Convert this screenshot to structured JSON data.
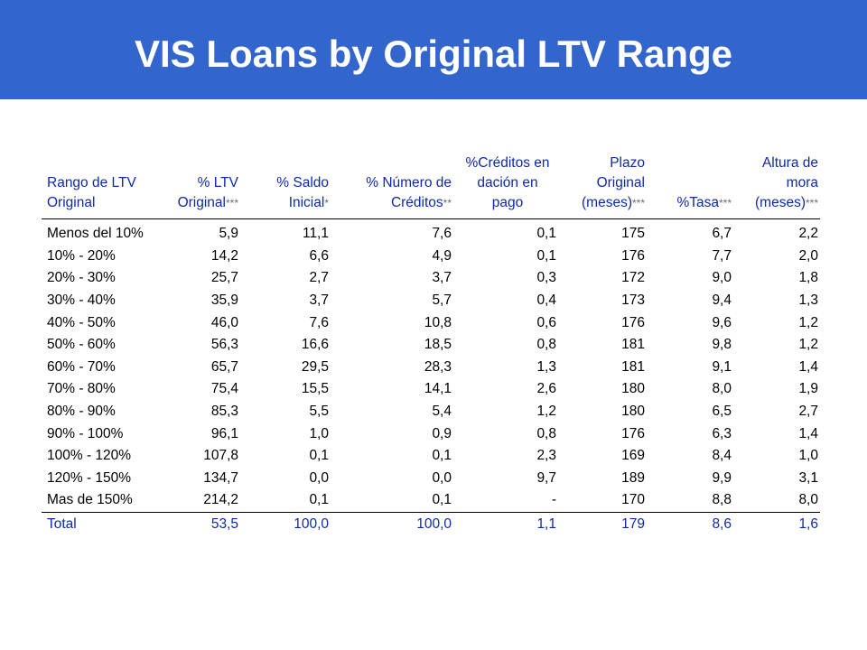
{
  "slide": {
    "title": "VIS Loans by Original LTV Range"
  },
  "table": {
    "headers": [
      {
        "lines": [
          "Rango de LTV",
          "Original"
        ],
        "asterisks": ""
      },
      {
        "lines": [
          "% LTV",
          "Original"
        ],
        "asterisks": "***"
      },
      {
        "lines": [
          "% Saldo",
          "Inicial"
        ],
        "asterisks": "*"
      },
      {
        "lines": [
          "% Número de",
          "Créditos"
        ],
        "asterisks": "**"
      },
      {
        "lines": [
          "%Créditos en",
          "dación en",
          "pago"
        ],
        "asterisks": ""
      },
      {
        "lines": [
          "Plazo",
          "Original",
          "(meses)"
        ],
        "asterisks": "***"
      },
      {
        "lines": [
          "%Tasa"
        ],
        "asterisks": "***"
      },
      {
        "lines": [
          "Altura de",
          "mora",
          "(meses)"
        ],
        "asterisks": "***"
      }
    ],
    "rows": [
      [
        "Menos del 10%",
        "5,9",
        "11,1",
        "7,6",
        "0,1",
        "175",
        "6,7",
        "2,2"
      ],
      [
        "10% - 20%",
        "14,2",
        "6,6",
        "4,9",
        "0,1",
        "176",
        "7,7",
        "2,0"
      ],
      [
        "20% - 30%",
        "25,7",
        "2,7",
        "3,7",
        "0,3",
        "172",
        "9,0",
        "1,8"
      ],
      [
        "30% - 40%",
        "35,9",
        "3,7",
        "5,7",
        "0,4",
        "173",
        "9,4",
        "1,3"
      ],
      [
        "40% - 50%",
        "46,0",
        "7,6",
        "10,8",
        "0,6",
        "176",
        "9,6",
        "1,2"
      ],
      [
        "50% - 60%",
        "56,3",
        "16,6",
        "18,5",
        "0,8",
        "181",
        "9,8",
        "1,2"
      ],
      [
        "60% - 70%",
        "65,7",
        "29,5",
        "28,3",
        "1,3",
        "181",
        "9,1",
        "1,4"
      ],
      [
        "70% - 80%",
        "75,4",
        "15,5",
        "14,1",
        "2,6",
        "180",
        "8,0",
        "1,9"
      ],
      [
        "80% - 90%",
        "85,3",
        "5,5",
        "5,4",
        "1,2",
        "180",
        "6,5",
        "2,7"
      ],
      [
        "90% - 100%",
        "96,1",
        "1,0",
        "0,9",
        "0,8",
        "176",
        "6,3",
        "1,4"
      ],
      [
        "100% - 120%",
        "107,8",
        "0,1",
        "0,1",
        "2,3",
        "169",
        "8,4",
        "1,0"
      ],
      [
        "120% - 150%",
        "134,7",
        "0,0",
        "0,0",
        "9,7",
        "189",
        "9,9",
        "3,1"
      ],
      [
        "Mas de 150%",
        "214,2",
        "0,1",
        "0,1",
        "-",
        "170",
        "8,8",
        "8,0"
      ]
    ],
    "total": [
      "Total",
      "53,5",
      "100,0",
      "100,0",
      "1,1",
      "179",
      "8,6",
      "1,6"
    ]
  },
  "colors": {
    "title_bar": "#3366cc",
    "header_text": "#0e2aa8",
    "asterisk_text": "#6b6b6b"
  }
}
